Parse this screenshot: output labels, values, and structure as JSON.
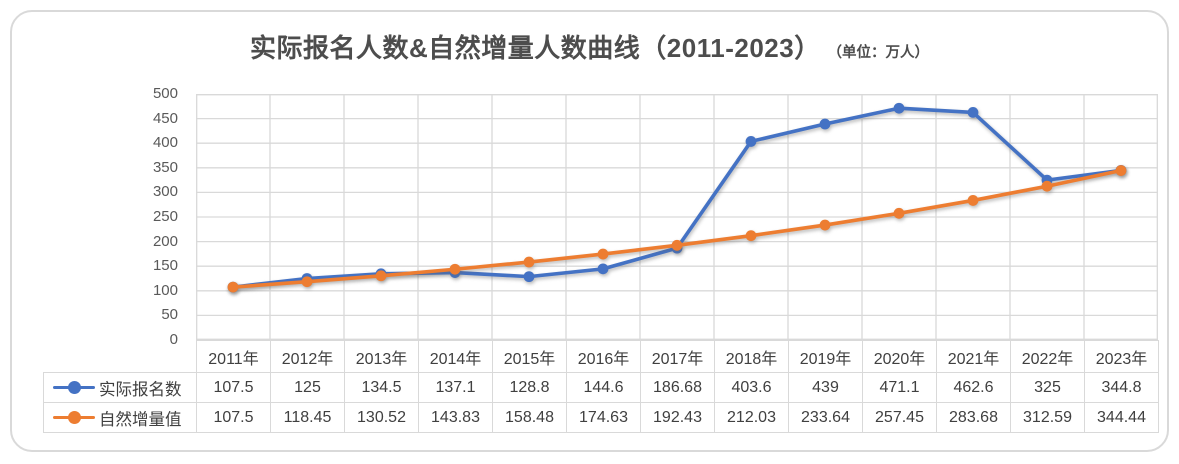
{
  "chart_data": {
    "type": "line",
    "title": "实际报名人数&自然增量人数曲线（2011-2023）",
    "subtitle": "（单位：万人）",
    "categories": [
      "2011年",
      "2012年",
      "2013年",
      "2014年",
      "2015年",
      "2016年",
      "2017年",
      "2018年",
      "2019年",
      "2020年",
      "2021年",
      "2022年",
      "2023年"
    ],
    "series": [
      {
        "name": "实际报名数",
        "color": "#4472C4",
        "values": [
          107.5,
          125,
          134.5,
          137.1,
          128.8,
          144.6,
          186.68,
          403.6,
          439,
          471.1,
          462.6,
          325,
          344.8
        ]
      },
      {
        "name": "自然增量值",
        "color": "#ED7D31",
        "values": [
          107.5,
          118.45,
          130.52,
          143.83,
          158.48,
          174.63,
          192.43,
          212.03,
          233.64,
          257.45,
          283.68,
          312.59,
          344.44
        ]
      }
    ],
    "ylim": [
      0,
      500
    ],
    "yticks": [
      0,
      50,
      100,
      150,
      200,
      250,
      300,
      350,
      400,
      450,
      500
    ],
    "grid": true,
    "marker": "circle",
    "legend_position": "data-table-left",
    "data_table_shown": true
  },
  "colors": {
    "series1_blue": "#4472C4",
    "series2_orange": "#ED7D31",
    "gridline": "#D9D9D9",
    "card_border": "#D9D9D9",
    "axis_text": "#595959",
    "title_text": "#4D4D4D",
    "table_text": "#404040"
  }
}
